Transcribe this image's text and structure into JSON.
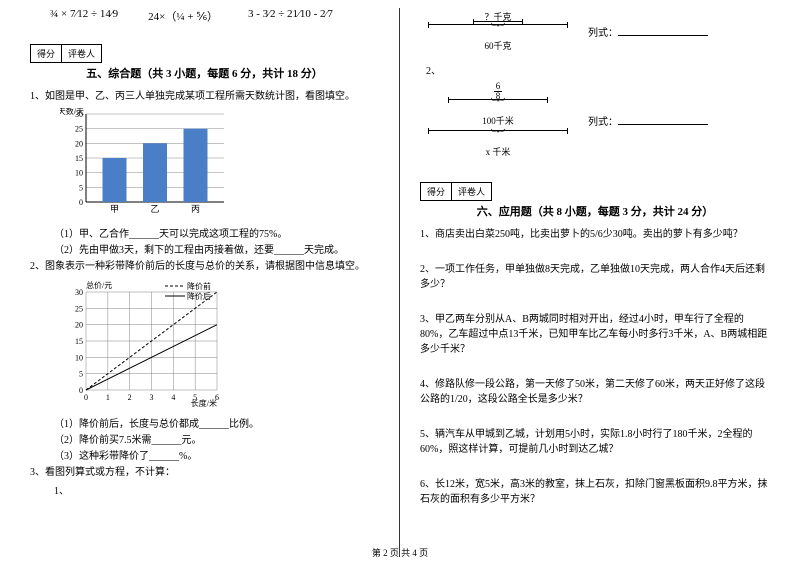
{
  "footer": "第 2 页 共 4 页",
  "formulas": {
    "f1": "¾ × 7⁄12 ÷ 14⁄9",
    "f2": "24×（¼ + ⅚）",
    "f3": "3 - 3⁄2 ÷ 21⁄10 - 2⁄7"
  },
  "score_labels": {
    "a": "得分",
    "b": "评卷人"
  },
  "sec5": {
    "title": "五、综合题（共 3 小题，每题 6 分，共计 18 分）",
    "q1": "1、如图是甲、乙、丙三人单独完成某项工程所需天数统计图，看图填空。",
    "q1s1": "（1）甲、乙合作______天可以完成这项工程的75%。",
    "q1s2": "（2）先由甲做3天，剩下的工程由丙接着做，还要______天完成。",
    "q2": "2、图象表示一种彩带降价前后的长度与总价的关系，请根据图中信息填空。",
    "q2s1": "（1）降价前后，长度与总价都成______比例。",
    "q2s2": "（2）降价前买7.5米需______元。",
    "q2s3": "（3）这种彩带降价了______%。",
    "q3": "3、看图列算式或方程，不计算：",
    "q3n1": "1、",
    "q3n2": "2、",
    "legend_before": "降价前",
    "legend_after": "降价后"
  },
  "barchart": {
    "ylabel": "天数/天",
    "ymax": 30,
    "ystep": 5,
    "bars": [
      {
        "x": "甲",
        "v": 15
      },
      {
        "x": "乙",
        "v": 20
      },
      {
        "x": "丙",
        "v": 25
      }
    ],
    "bar_color": "#4a7fc8",
    "grid": "#888"
  },
  "linechart": {
    "ylabel": "总价/元",
    "xlabel": "长度/米",
    "xmax": 6,
    "ymax": 30,
    "ystep": 5,
    "grid": "#666"
  },
  "dia1": {
    "top": "？千克",
    "bottom": "60千克",
    "label": "列式："
  },
  "dia2": {
    "top_frac_n": "6",
    "top_frac_d": "8",
    "bottom": "100千米",
    "xvar": "x 千米",
    "label": "列式："
  },
  "sec6": {
    "title": "六、应用题（共 8 小题，每题 3 分，共计 24 分）",
    "q1": "1、商店卖出白菜250吨，比卖出萝卜的5/6少30吨。卖出的萝卜有多少吨？",
    "q2": "2、一项工作任务，甲单独做8天完成，乙单独做10天完成，两人合作4天后还剩多少？",
    "q3": "3、甲乙两车分别从A、B两城同时相对开出，经过4小时，甲车行了全程的80%，乙车超过中点13千米，已知甲车比乙车每小时多行3千米，A、B两城相距多少千米？",
    "q4": "4、修路队修一段公路，第一天修了50米，第二天修了60米，两天正好修了这段公路的1/20，这段公路全长是多少米？",
    "q5": "5、辆汽车从甲城到乙城，计划用5小时，实际1.8小时行了180千米，2全程的60%，照这样计算，可提前几小时到达乙城？",
    "q6": "6、长12米，宽5米，高3米的教室，抹上石灰，扣除门窗黑板面积9.8平方米，抹石灰的面积有多少平方米？"
  }
}
